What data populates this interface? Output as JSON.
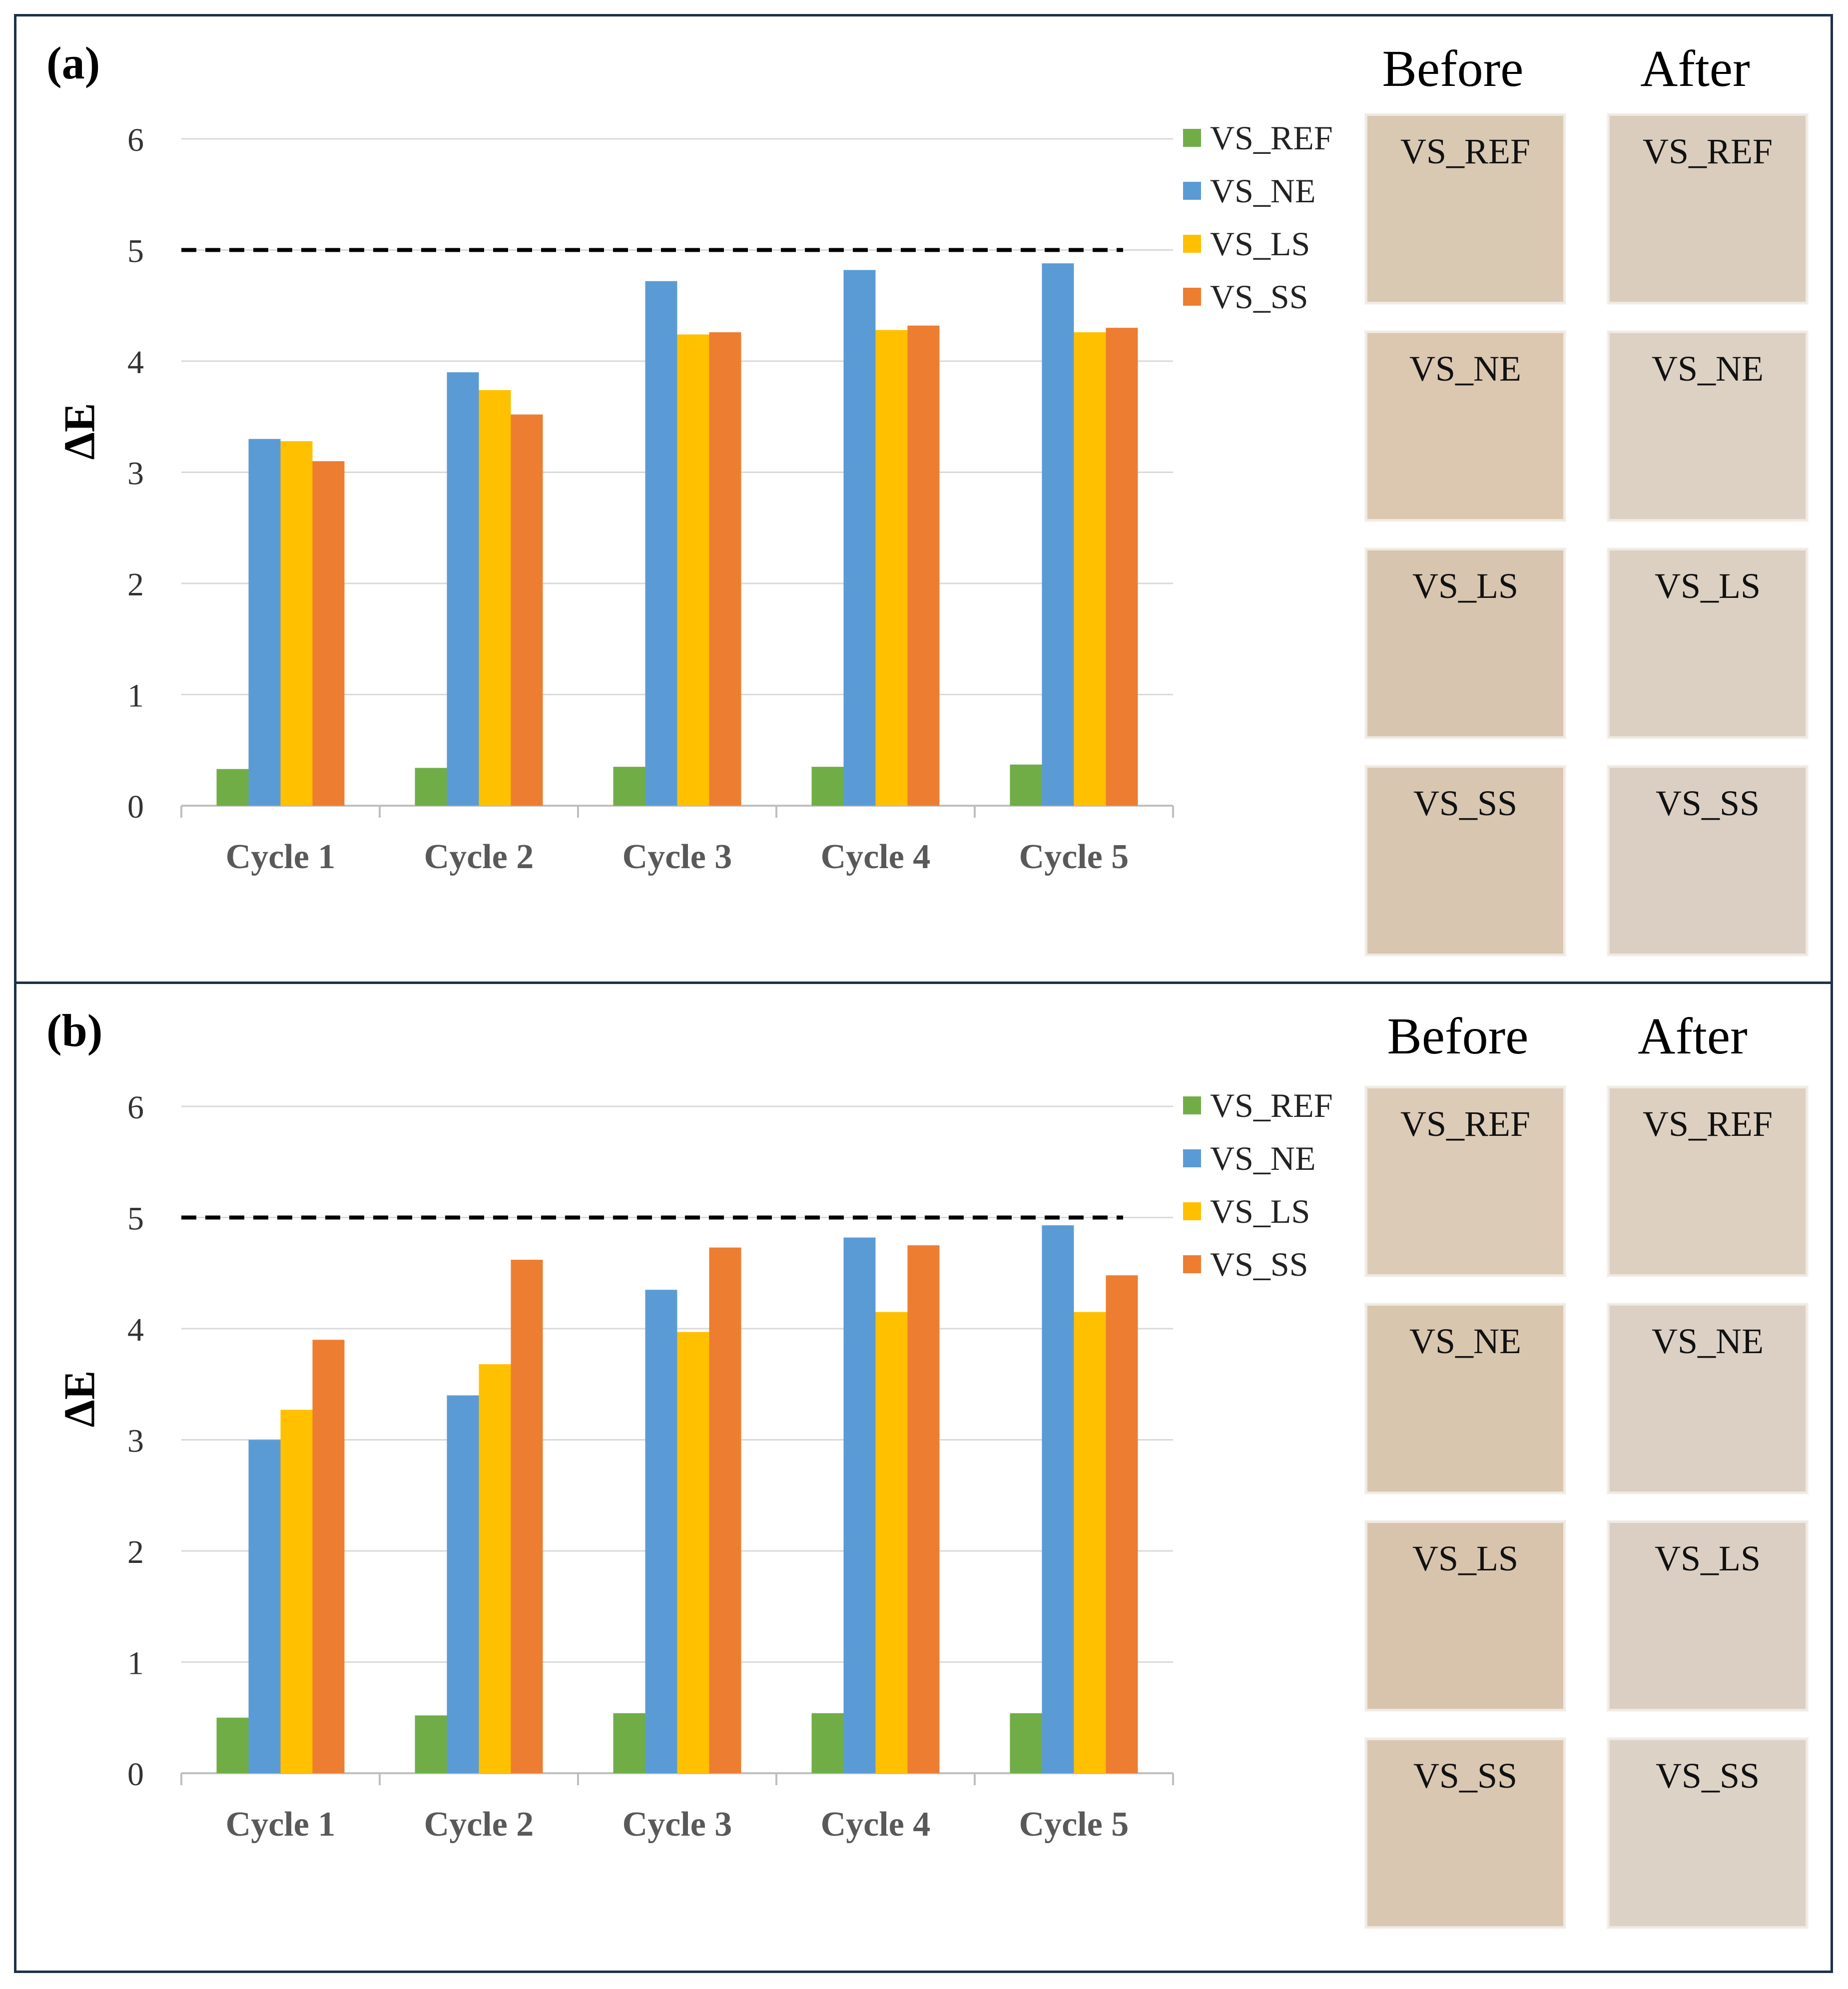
{
  "colors": {
    "VS_REF": "#70ad47",
    "VS_NE": "#5b9bd5",
    "VS_LS": "#ffc000",
    "VS_SS": "#ed7d31",
    "threshold_line": "#000000",
    "grid": "#d9d9d9"
  },
  "chart_data": [
    {
      "panel_label": "(a)",
      "type": "bar",
      "ylabel": "ΔE",
      "ylim": [
        0,
        6
      ],
      "yticks": [
        "0",
        "1",
        "2",
        "3",
        "4",
        "5",
        "6"
      ],
      "grid": true,
      "legend_position": "right",
      "threshold": 5,
      "categories": [
        "Cycle 1",
        "Cycle 2",
        "Cycle 3",
        "Cycle 4",
        "Cycle 5"
      ],
      "series": [
        {
          "name": "VS_REF",
          "values": [
            0.33,
            0.34,
            0.35,
            0.35,
            0.37
          ]
        },
        {
          "name": "VS_NE",
          "values": [
            3.3,
            3.9,
            4.72,
            4.82,
            4.88
          ]
        },
        {
          "name": "VS_LS",
          "values": [
            3.28,
            3.74,
            4.24,
            4.28,
            4.26
          ]
        },
        {
          "name": "VS_SS",
          "values": [
            3.1,
            3.52,
            4.26,
            4.32,
            4.3
          ]
        }
      ],
      "swatches": {
        "before_header": "Before",
        "after_header": "After",
        "rows": [
          {
            "label": "VS_REF",
            "before": "#d9c8b2",
            "after": "#dacdbd"
          },
          {
            "label": "VS_NE",
            "before": "#dcc7b0",
            "after": "#ddd1c4"
          },
          {
            "label": "VS_LS",
            "before": "#d8c5af",
            "after": "#dcd0c2"
          },
          {
            "label": "VS_SS",
            "before": "#d8c6b1",
            "after": "#dbcfc3"
          }
        ]
      }
    },
    {
      "panel_label": "(b)",
      "type": "bar",
      "ylabel": "ΔE",
      "ylim": [
        0,
        6
      ],
      "yticks": [
        "0",
        "1",
        "2",
        "3",
        "4",
        "5",
        "6"
      ],
      "grid": true,
      "legend_position": "right",
      "threshold": 5,
      "categories": [
        "Cycle 1",
        "Cycle 2",
        "Cycle 3",
        "Cycle 4",
        "Cycle 5"
      ],
      "series": [
        {
          "name": "VS_REF",
          "values": [
            0.5,
            0.52,
            0.54,
            0.54,
            0.54
          ]
        },
        {
          "name": "VS_NE",
          "values": [
            3.0,
            3.4,
            4.35,
            4.82,
            4.93
          ]
        },
        {
          "name": "VS_LS",
          "values": [
            3.27,
            3.68,
            3.97,
            4.15,
            4.15
          ]
        },
        {
          "name": "VS_SS",
          "values": [
            3.9,
            4.62,
            4.73,
            4.75,
            4.48
          ]
        }
      ],
      "swatches": {
        "before_header": "Before",
        "after_header": "After",
        "rows": [
          {
            "label": "VS_REF",
            "before": "#dccbb7",
            "after": "#ddd0c0"
          },
          {
            "label": "VS_NE",
            "before": "#d9c6ae",
            "after": "#dcd0c4"
          },
          {
            "label": "VS_LS",
            "before": "#d8c4ad",
            "after": "#dbcfc3"
          },
          {
            "label": "VS_SS",
            "before": "#dac7b1",
            "after": "#ddd2c6"
          }
        ]
      }
    }
  ]
}
